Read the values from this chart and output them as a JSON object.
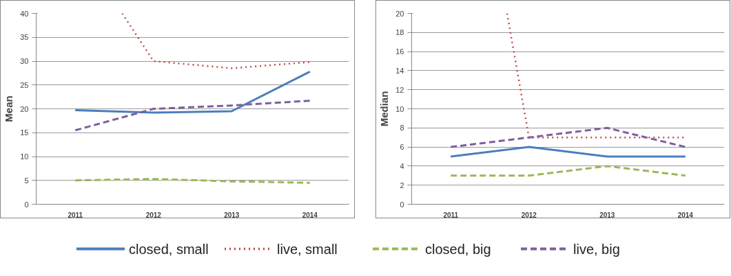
{
  "chart_data": [
    {
      "type": "line",
      "ylabel": "Mean",
      "x": [
        2011,
        2012,
        2013,
        2014
      ],
      "xlim": [
        2010.5,
        2014.5
      ],
      "xticks": [
        2011,
        2012,
        2013,
        2014
      ],
      "ylim": [
        0,
        40
      ],
      "yticks": [
        0,
        5,
        10,
        15,
        20,
        25,
        30,
        35,
        40
      ],
      "grid": "y",
      "legend": "bottom",
      "series": [
        {
          "name": "closed, small",
          "color": "#4a7ebb",
          "line_style": "solid",
          "values": [
            19.7,
            19.2,
            19.5,
            27.8
          ]
        },
        {
          "name": "live, small",
          "color": "#be4b48",
          "line_style": "dotted",
          "x": [
            2011.6,
            2012,
            2013,
            2014
          ],
          "values": [
            40,
            30,
            28.5,
            29.8
          ]
        },
        {
          "name": "closed, big",
          "color": "#98b954",
          "line_style": "dashed",
          "values": [
            5,
            5.3,
            4.8,
            4.5
          ]
        },
        {
          "name": "live, big",
          "color": "#7d5fa0",
          "line_style": "dashed",
          "values": [
            15.5,
            20,
            20.7,
            21.7
          ]
        }
      ]
    },
    {
      "type": "line",
      "ylabel": "Median",
      "x": [
        2011,
        2012,
        2013,
        2014
      ],
      "xlim": [
        2010.5,
        2014.5
      ],
      "xticks": [
        2011,
        2012,
        2013,
        2014
      ],
      "ylim": [
        0,
        20
      ],
      "yticks": [
        0,
        2,
        4,
        6,
        8,
        10,
        12,
        14,
        16,
        18,
        20
      ],
      "grid": "y",
      "series": [
        {
          "color": "#4a7ebb",
          "line_style": "solid",
          "values": [
            5,
            6,
            5,
            5
          ]
        },
        {
          "color": "#be4b48",
          "line_style": "dotted",
          "x": [
            2011.72,
            2012,
            2013,
            2014
          ],
          "values": [
            20,
            7,
            7,
            7
          ]
        },
        {
          "color": "#98b954",
          "line_style": "dashed",
          "values": [
            3,
            3,
            4,
            3
          ]
        },
        {
          "color": "#7d5fa0",
          "line_style": "dashed",
          "values": [
            6,
            7,
            8,
            6
          ]
        }
      ]
    }
  ]
}
